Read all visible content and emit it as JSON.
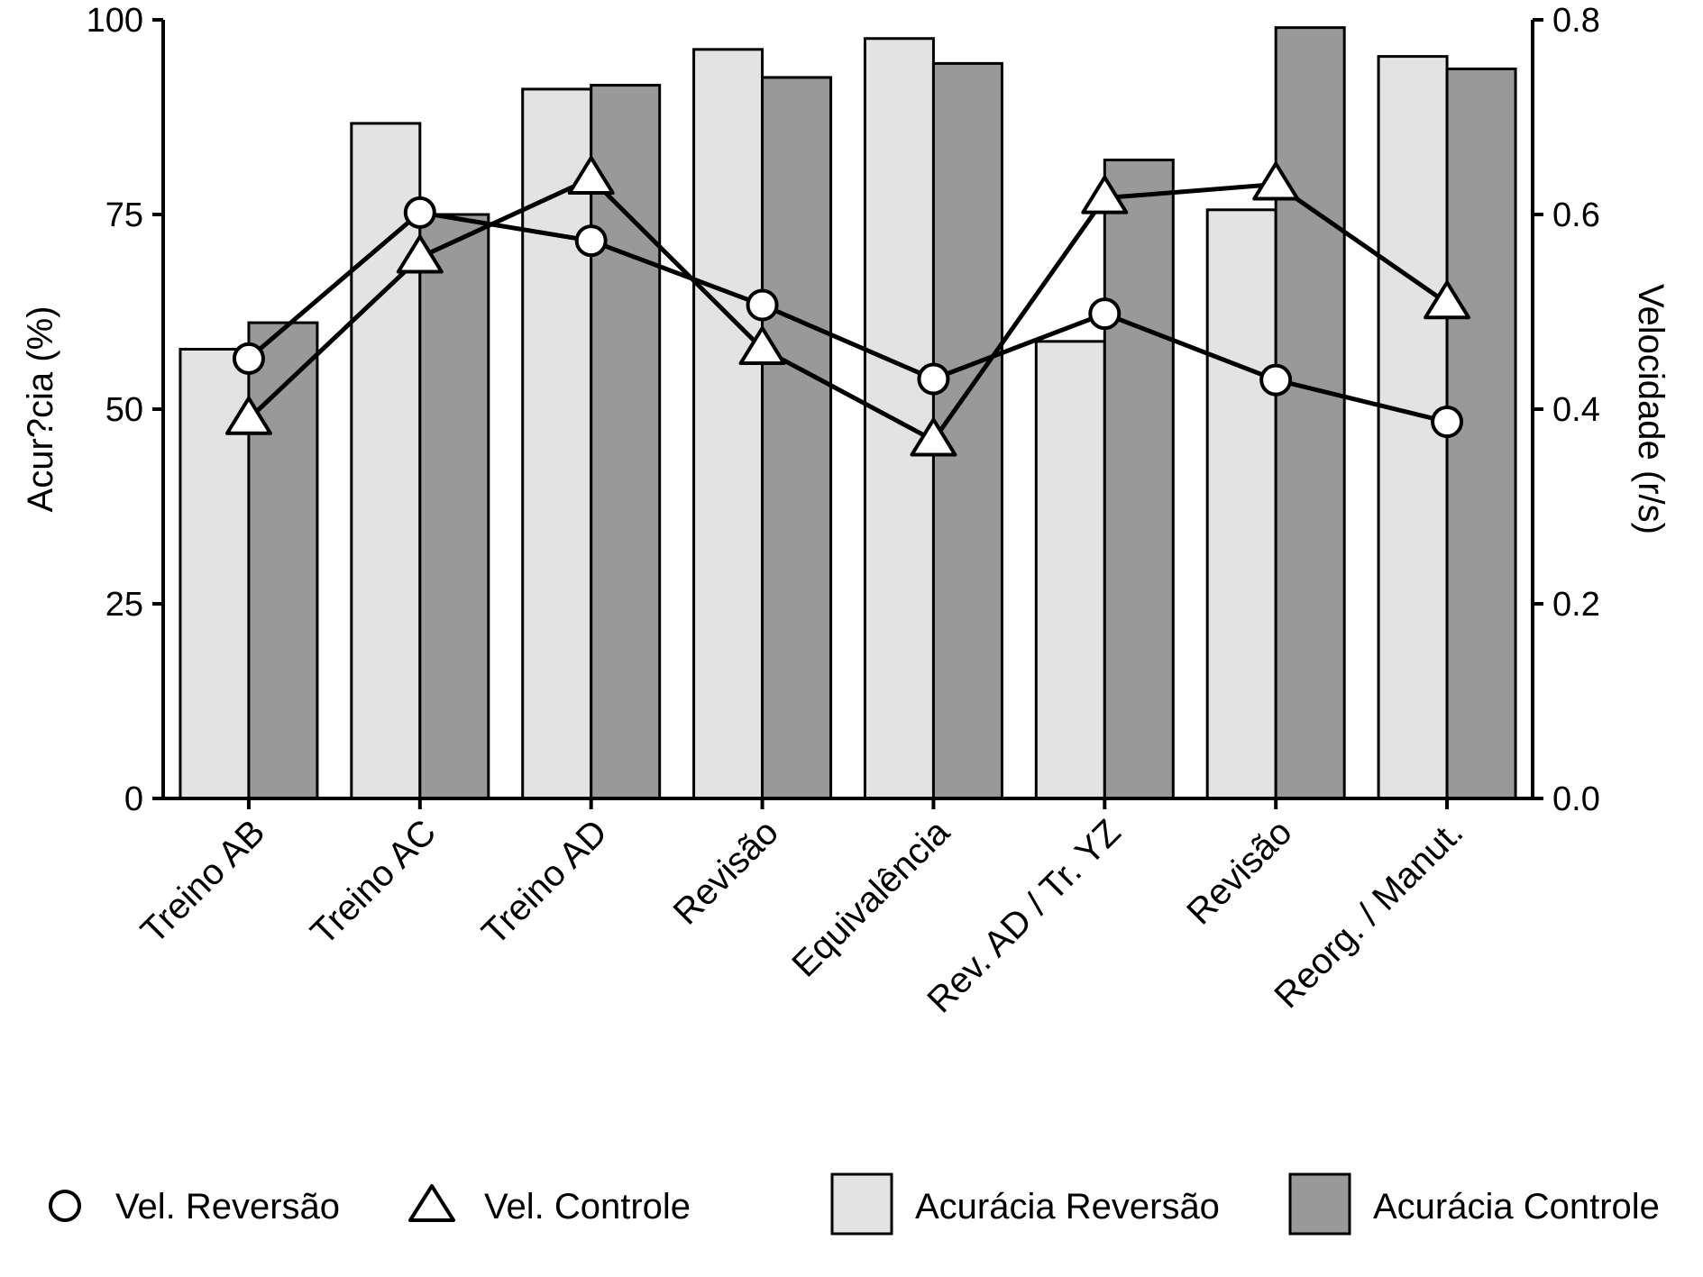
{
  "chart_data": {
    "type": "bar",
    "categories": [
      "Treino AB",
      "Treino AC",
      "Treino AD",
      "Revisão",
      "Equivalência",
      "Rev. AD / Tr. YZ",
      "Revisão",
      "Reorg. / Manut."
    ],
    "ylabel": "Acur?cia (%)",
    "y2label": "Velocidade (r/s)",
    "ylim": [
      0,
      100
    ],
    "y2lim": [
      0,
      0.8
    ],
    "yticks": [
      "0",
      "25",
      "50",
      "75",
      "100"
    ],
    "y2ticks": [
      "0.0",
      "0.2",
      "0.4",
      "0.6",
      "0.8"
    ],
    "grid": false,
    "legend_position": "bottom",
    "bar_series": [
      {
        "name": "Acurácia Reversão",
        "color": "#e3e3e3",
        "values": [
          57.7,
          86.7,
          91.1,
          96.2,
          97.6,
          58.7,
          75.6,
          95.3
        ]
      },
      {
        "name": "Acurácia Controle",
        "color": "#999999",
        "values": [
          61.1,
          75.0,
          91.6,
          92.6,
          94.4,
          82.0,
          99.0,
          93.7
        ]
      }
    ],
    "line_series": [
      {
        "name": "Vel. Reversão",
        "marker": "circle",
        "values": [
          0.452,
          0.602,
          0.573,
          0.507,
          0.431,
          0.498,
          0.43,
          0.387
        ]
      },
      {
        "name": "Vel. Controle",
        "marker": "triangle",
        "values": [
          0.39,
          0.556,
          0.637,
          0.462,
          0.368,
          0.617,
          0.631,
          0.509
        ]
      }
    ]
  }
}
